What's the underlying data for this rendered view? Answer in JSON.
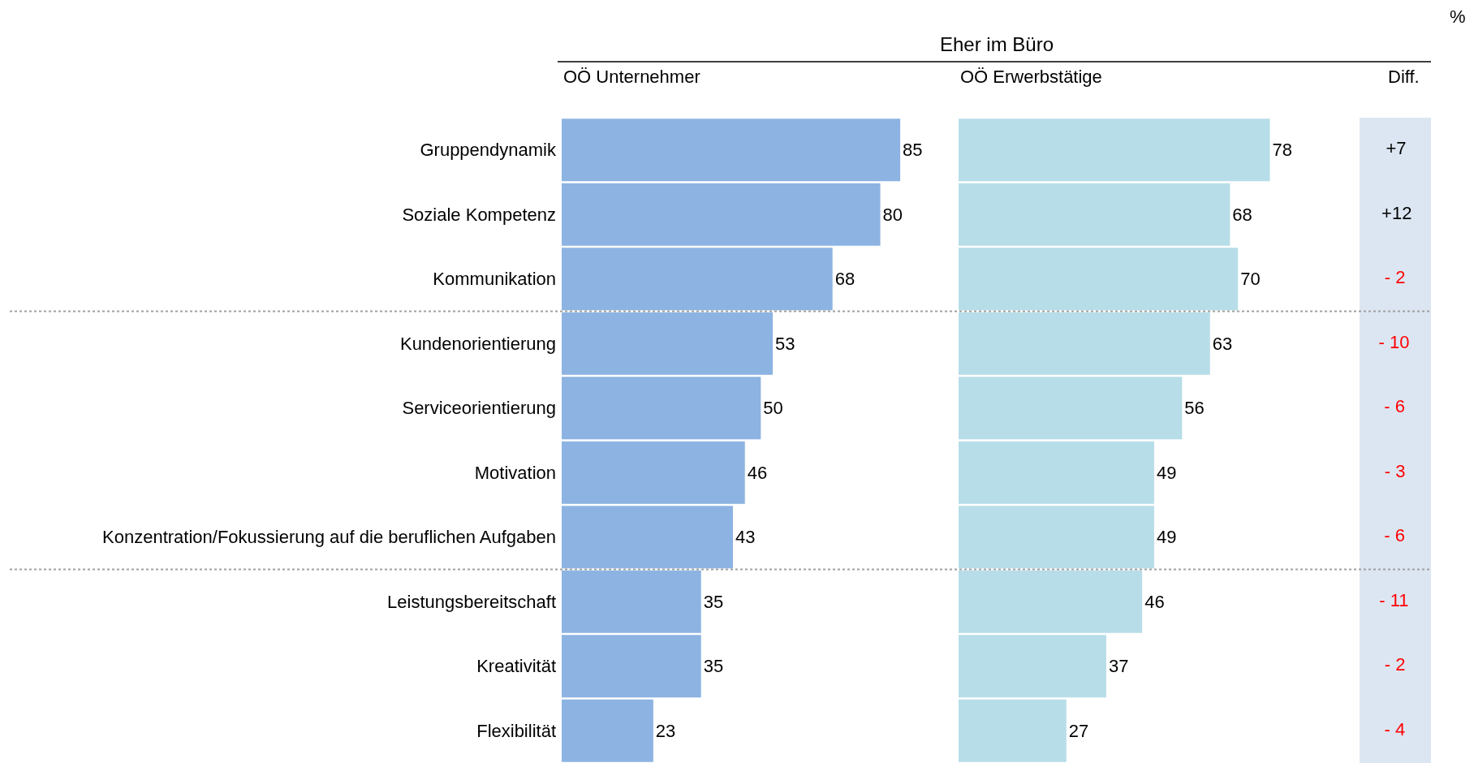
{
  "chart_data": [
    {
      "type": "bar",
      "title": "OÖ Unternehmer",
      "orientation": "horizontal",
      "data_labels": true,
      "tick_labels": "y",
      "categories": [
        "Gruppendynamik",
        "Soziale Kompetenz",
        "Kommunikation",
        "Kundenorientierung",
        "Serviceorientierung",
        "Motivation",
        "Konzentration/Fokussierung auf die beruflichen Aufgaben",
        "Leistungsbereitschaft",
        "Kreativität",
        "Flexibilität"
      ],
      "series": [
        {
          "color": "#8db3e2",
          "values": [
            85,
            80,
            68,
            53,
            50,
            46,
            43,
            35,
            35,
            23
          ]
        }
      ],
      "annotations": [
        "Eher im Büro",
        "%"
      ]
    },
    {
      "type": "bar",
      "title": "OÖ Erwerbstätige",
      "orientation": "horizontal",
      "data_labels": true,
      "tick_labels": false,
      "categories": [
        null,
        null,
        null,
        null,
        null,
        null,
        null,
        null,
        null,
        null
      ],
      "series": [
        {
          "color": "#b7dde8",
          "values": [
            78,
            68,
            70,
            63,
            56,
            49,
            49,
            46,
            37,
            27
          ]
        }
      ]
    },
    {
      "type": "other",
      "title": "Diff.",
      "value_labels": [
        "+7",
        "+12",
        "- 2",
        "- 10",
        "- 6",
        "- 3",
        "- 6",
        "- 11",
        "- 2",
        "- 4"
      ],
      "categories": [
        null,
        null,
        null,
        null,
        null,
        null,
        null,
        null,
        null,
        null
      ],
      "values": [
        7,
        12,
        -2,
        -10,
        -6,
        -3,
        -6,
        -11,
        -2,
        -4
      ],
      "colors": [
        "#000000",
        "#000000",
        "#ff0000",
        "#ff0000",
        "#ff0000",
        "#ff0000",
        "#ff0000",
        "#ff0000",
        "#ff0000",
        "#ff0000"
      ]
    }
  ]
}
